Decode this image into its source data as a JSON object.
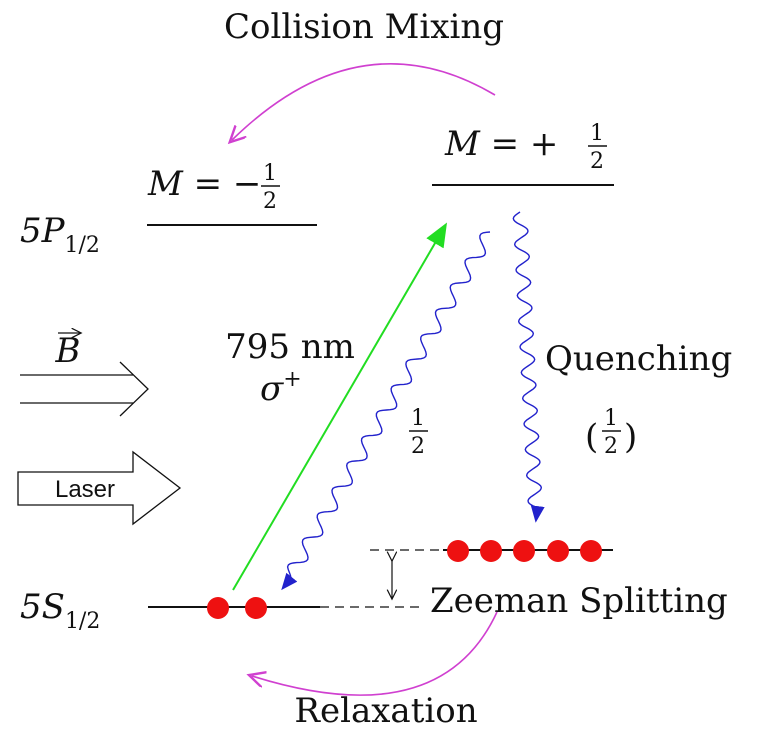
{
  "collision_mixing": "Collision Mixing",
  "upper_levels": [
    {
      "prefix": "M = −",
      "num": "1",
      "den": "2"
    },
    {
      "prefix": "M = +",
      "num": "1",
      "den": "2"
    }
  ],
  "excited_state": {
    "base": "5P",
    "sub": "1/2"
  },
  "ground_state": {
    "base": "5S",
    "sub": "1/2"
  },
  "field": "B",
  "laser": "Laser",
  "excitation": {
    "wavelength": "795 nm",
    "polarization": "σ",
    "sup": "+"
  },
  "decay_fraction": {
    "num": "1",
    "den": "2"
  },
  "quenching": {
    "label": "Quenching",
    "open": "(",
    "num": "1",
    "den": "2",
    "close": ")"
  },
  "zeeman": "Zeeman Splitting",
  "relaxation": "Relaxation"
}
